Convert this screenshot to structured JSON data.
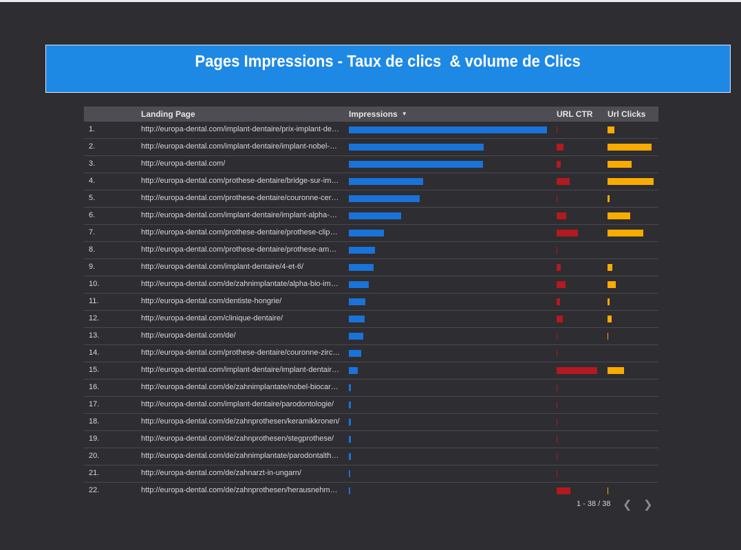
{
  "banner": {
    "title": "Pages Impressions - Taux de clics  & volume de Clics"
  },
  "table": {
    "columns": {
      "index": "",
      "page": "Landing Page",
      "impressions": "Impressions",
      "ctr": "URL CTR",
      "clicks": "Url Clicks"
    },
    "sort_icon": "triangle-down-icon",
    "colors": {
      "impressions": "#1a73d9",
      "ctr": "#b3191f",
      "clicks": "#f9ab00"
    },
    "rows": [
      {
        "idx": "1.",
        "page": "http://europa-dental.com/implant-dentaire/prix-implant-dentaire/",
        "impressions": 1.0,
        "ctr": 0.02,
        "clicks": 0.15
      },
      {
        "idx": "2.",
        "page": "http://europa-dental.com/implant-dentaire/implant-nobel-biocare/",
        "impressions": 0.68,
        "ctr": 0.17,
        "clicks": 0.95
      },
      {
        "idx": "3.",
        "page": "http://europa-dental.com/",
        "impressions": 0.678,
        "ctr": 0.1,
        "clicks": 0.52
      },
      {
        "idx": "4.",
        "page": "http://europa-dental.com/prothese-dentaire/bridge-sur-implants/",
        "impressions": 0.375,
        "ctr": 0.32,
        "clicks": 1.0
      },
      {
        "idx": "5.",
        "page": "http://europa-dental.com/prothese-dentaire/couronne-ceramique/",
        "impressions": 0.358,
        "ctr": 0.02,
        "clicks": 0.05
      },
      {
        "idx": "6.",
        "page": "http://europa-dental.com/implant-dentaire/implant-alpha-bio/",
        "impressions": 0.264,
        "ctr": 0.24,
        "clicks": 0.49
      },
      {
        "idx": "7.",
        "page": "http://europa-dental.com/prothese-dentaire/prothese-clipsee/",
        "impressions": 0.177,
        "ctr": 0.53,
        "clicks": 0.78
      },
      {
        "idx": "8.",
        "page": "http://europa-dental.com/prothese-dentaire/prothese-amovible/",
        "impressions": 0.132,
        "ctr": 0.02,
        "clicks": 0
      },
      {
        "idx": "9.",
        "page": "http://europa-dental.com/implant-dentaire/4-et-6/",
        "impressions": 0.125,
        "ctr": 0.1,
        "clicks": 0.11
      },
      {
        "idx": "10.",
        "page": "http://europa-dental.com/de/zahnimplantate/alpha-bio-implantate/",
        "impressions": 0.101,
        "ctr": 0.22,
        "clicks": 0.18
      },
      {
        "idx": "11.",
        "page": "http://europa-dental.com/dentiste-hongrie/",
        "impressions": 0.083,
        "ctr": 0.08,
        "clicks": 0.05
      },
      {
        "idx": "12.",
        "page": "http://europa-dental.com/clinique-dentaire/",
        "impressions": 0.08,
        "ctr": 0.15,
        "clicks": 0.09
      },
      {
        "idx": "13.",
        "page": "http://europa-dental.com/de/",
        "impressions": 0.073,
        "ctr": 0.02,
        "clicks": 0.02
      },
      {
        "idx": "14.",
        "page": "http://europa-dental.com/prothese-dentaire/couronne-zircone/",
        "impressions": 0.062,
        "ctr": 0.02,
        "clicks": 0
      },
      {
        "idx": "15.",
        "page": "http://europa-dental.com/implant-dentaire/implant-dentaire-hongrie/",
        "impressions": 0.045,
        "ctr": 1.0,
        "clicks": 0.36
      },
      {
        "idx": "16.",
        "page": "http://europa-dental.com/de/zahnimplantate/nobel-biocare-implantate/",
        "impressions": 0.01,
        "ctr": 0.02,
        "clicks": 0
      },
      {
        "idx": "17.",
        "page": "http://europa-dental.com/implant-dentaire/parodontologie/",
        "impressions": 0.01,
        "ctr": 0.02,
        "clicks": 0
      },
      {
        "idx": "18.",
        "page": "http://europa-dental.com/de/zahnprothesen/keramikkronen/",
        "impressions": 0.01,
        "ctr": 0.02,
        "clicks": 0
      },
      {
        "idx": "19.",
        "page": "http://europa-dental.com/de/zahnprothesen/stegprothese/",
        "impressions": 0.01,
        "ctr": 0.02,
        "clicks": 0
      },
      {
        "idx": "20.",
        "page": "http://europa-dental.com/de/zahnimplantate/parodontalthemen/",
        "impressions": 0.01,
        "ctr": 0.02,
        "clicks": 0
      },
      {
        "idx": "21.",
        "page": "http://europa-dental.com/de/zahnarzt-in-ungarn/",
        "impressions": 0.006,
        "ctr": 0.02,
        "clicks": 0
      },
      {
        "idx": "22.",
        "page": "http://europa-dental.com/de/zahnprothesen/herausnehmbare-prothese/",
        "impressions": 0.006,
        "ctr": 0.34,
        "clicks": 0.02
      }
    ]
  },
  "pager": {
    "text": "1 - 38 / 38",
    "prev_icon": "chevron-left-icon",
    "next_icon": "chevron-right-icon"
  }
}
